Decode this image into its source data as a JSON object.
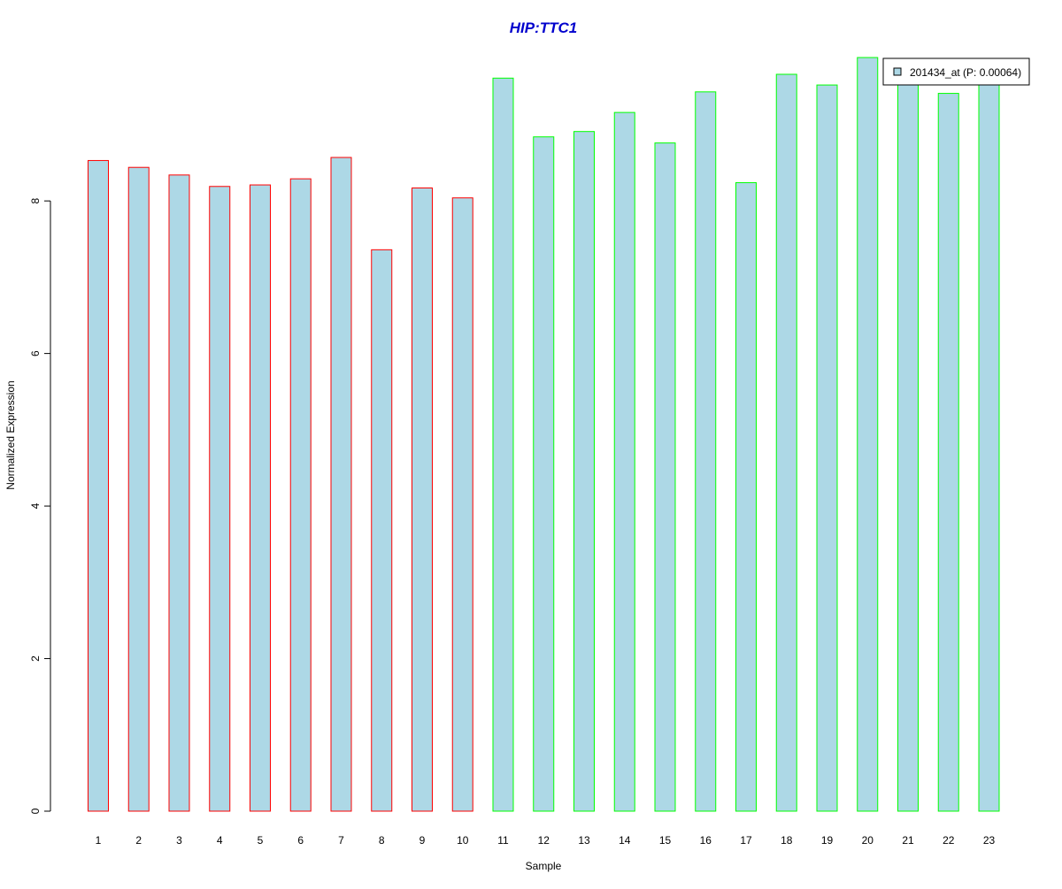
{
  "chart_data": {
    "type": "bar",
    "title": "HIP:TTC1",
    "xlabel": "Sample",
    "ylabel": "Normalized Expression",
    "categories": [
      "1",
      "2",
      "3",
      "4",
      "5",
      "6",
      "7",
      "8",
      "9",
      "10",
      "11",
      "12",
      "13",
      "14",
      "15",
      "16",
      "17",
      "18",
      "19",
      "20",
      "21",
      "22",
      "23"
    ],
    "series": [
      {
        "name": "201434_at (P: 0.00064)",
        "values": [
          8.53,
          8.44,
          8.34,
          8.19,
          8.21,
          8.29,
          8.57,
          7.36,
          8.17,
          8.04,
          9.61,
          8.84,
          8.91,
          9.16,
          8.76,
          9.43,
          8.24,
          9.66,
          9.52,
          9.88,
          9.54,
          9.41,
          9.54
        ]
      }
    ],
    "bar_fill": "#add8e6",
    "bar_outline": [
      "#ff0000",
      "#ff0000",
      "#ff0000",
      "#ff0000",
      "#ff0000",
      "#ff0000",
      "#ff0000",
      "#ff0000",
      "#ff0000",
      "#ff0000",
      "#00ff00",
      "#00ff00",
      "#00ff00",
      "#00ff00",
      "#00ff00",
      "#00ff00",
      "#00ff00",
      "#00ff00",
      "#00ff00",
      "#00ff00",
      "#00ff00",
      "#00ff00",
      "#00ff00"
    ],
    "title_color": "#0000cd",
    "yticks": [
      "0",
      "2",
      "4",
      "6",
      "8"
    ],
    "ylim": [
      0,
      9.95
    ],
    "grid": false,
    "legend_position": "top-right"
  }
}
